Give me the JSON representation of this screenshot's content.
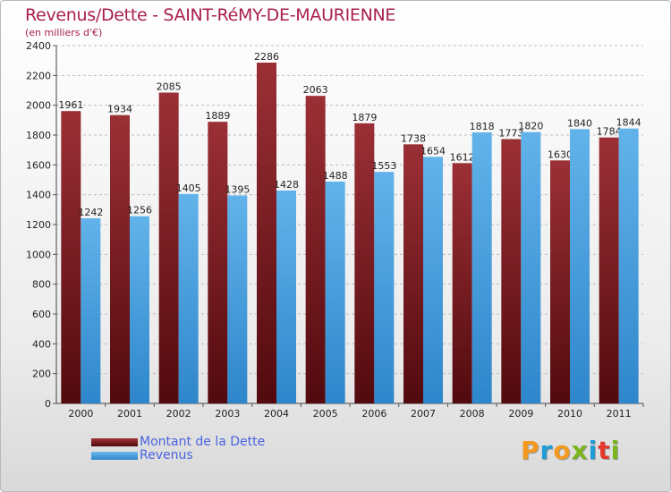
{
  "title": "Revenus/Dette - SAINT-RéMY-DE-MAURIENNE",
  "subtitle": "(en milliers d'€)",
  "brand": {
    "letters": [
      "P",
      "r",
      "o",
      "x",
      "i",
      "t",
      "i"
    ],
    "letter_colors": [
      "#f39a1e",
      "#1f9bd6",
      "#f39a1e",
      "#7ab51d",
      "#1f9bd6",
      "#e33a2c",
      "#7ab51d"
    ]
  },
  "colors": {
    "debt": "#7a1c20",
    "revenue": "#4aa2e0",
    "axis_text": "#222222",
    "grid": "#bdbdbd"
  },
  "chart_data": {
    "type": "bar",
    "title": "Revenus/Dette - SAINT-RéMY-DE-MAURIENNE",
    "subtitle": "(en milliers d'€)",
    "categories": [
      "2000",
      "2001",
      "2002",
      "2003",
      "2004",
      "2005",
      "2006",
      "2007",
      "2008",
      "2009",
      "2010",
      "2011"
    ],
    "series": [
      {
        "name": "Montant de la Dette",
        "values": [
          1961,
          1934,
          2085,
          1889,
          2286,
          2063,
          1879,
          1738,
          1612,
          1773,
          1630,
          1784
        ]
      },
      {
        "name": "Revenus",
        "values": [
          1242,
          1256,
          1405,
          1395,
          1428,
          1488,
          1553,
          1654,
          1818,
          1820,
          1840,
          1844
        ]
      }
    ],
    "ylim": [
      0,
      2400
    ],
    "yticks": [
      0,
      200,
      400,
      600,
      800,
      1000,
      1200,
      1400,
      1600,
      1800,
      2000,
      2200,
      2400
    ],
    "grid": true,
    "legend": "bottom-left"
  }
}
